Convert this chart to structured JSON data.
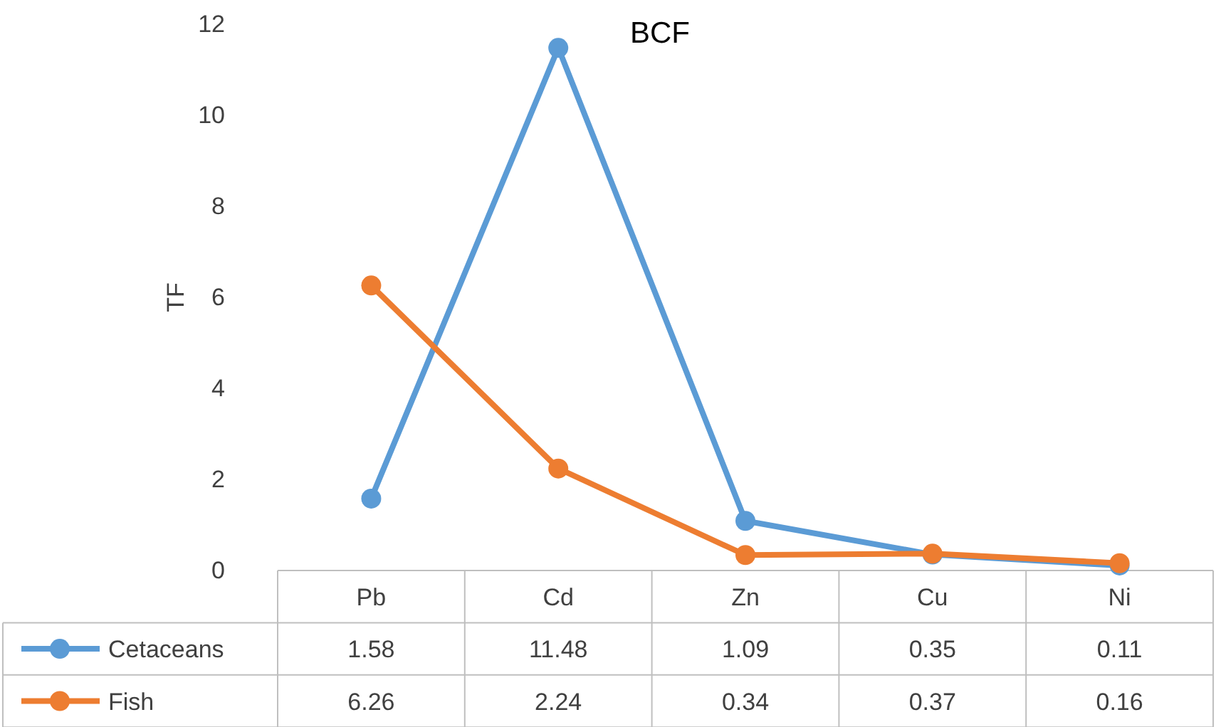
{
  "chart_data": {
    "type": "line",
    "title": "BCF",
    "ylabel": "TF",
    "categories": [
      "Pb",
      "Cd",
      "Zn",
      "Cu",
      "Ni"
    ],
    "series": [
      {
        "name": "Cetaceans",
        "color": "#5b9bd5",
        "values": [
          1.58,
          11.48,
          1.09,
          0.35,
          0.11
        ]
      },
      {
        "name": "Fish",
        "color": "#ed7d31",
        "values": [
          6.26,
          2.24,
          0.34,
          0.37,
          0.16
        ]
      }
    ],
    "ylim": [
      0,
      12
    ],
    "yticks": [
      0,
      2,
      4,
      6,
      8,
      10,
      12
    ],
    "grid": false,
    "legend": "bottom left",
    "marker": "circle",
    "line_style": "solid",
    "data_labels": true
  }
}
